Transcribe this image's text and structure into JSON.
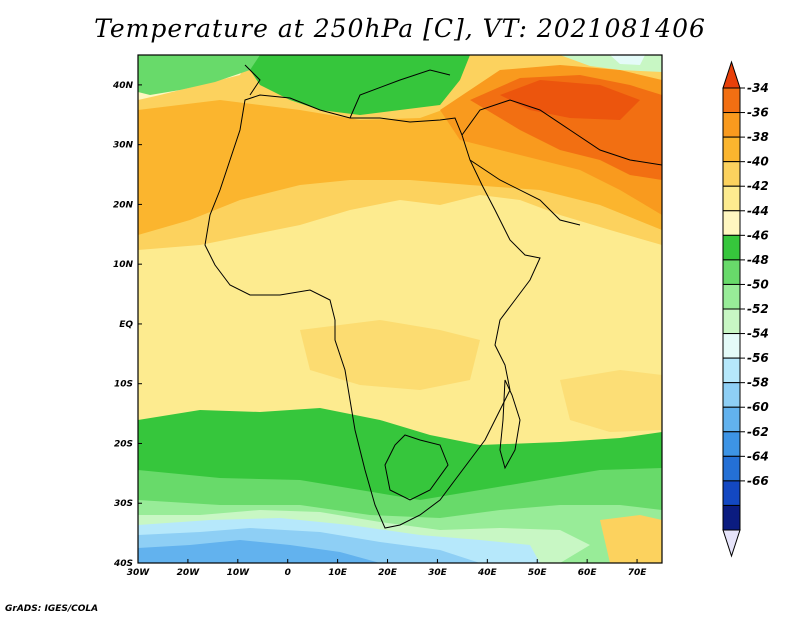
{
  "title": "Temperature at 250hPa [C], VT: 2021081406",
  "credit": "GrADS: IGES/COLA",
  "map": {
    "lon_range": [
      -30,
      75
    ],
    "lat_range": [
      -40,
      45
    ],
    "lon_ticks": [
      {
        "value": -30,
        "label": "30W"
      },
      {
        "value": -20,
        "label": "20W"
      },
      {
        "value": -10,
        "label": "10W"
      },
      {
        "value": 0,
        "label": "0"
      },
      {
        "value": 10,
        "label": "10E"
      },
      {
        "value": 20,
        "label": "20E"
      },
      {
        "value": 30,
        "label": "30E"
      },
      {
        "value": 40,
        "label": "40E"
      },
      {
        "value": 50,
        "label": "50E"
      },
      {
        "value": 60,
        "label": "60E"
      },
      {
        "value": 70,
        "label": "70E"
      }
    ],
    "lat_ticks": [
      {
        "value": 40,
        "label": "40N"
      },
      {
        "value": 30,
        "label": "30N"
      },
      {
        "value": 20,
        "label": "20N"
      },
      {
        "value": 10,
        "label": "10N"
      },
      {
        "value": 0,
        "label": "EQ"
      },
      {
        "value": -10,
        "label": "10S"
      },
      {
        "value": -20,
        "label": "20S"
      },
      {
        "value": -30,
        "label": "30S"
      },
      {
        "value": -40,
        "label": "40S"
      }
    ]
  },
  "colorbar": {
    "orientation": "vertical",
    "placement": "right",
    "ends": "triangles",
    "labels": [
      "-34",
      "-36",
      "-38",
      "-40",
      "-42",
      "-44",
      "-46",
      "-48",
      "-50",
      "-52",
      "-54",
      "-56",
      "-58",
      "-60",
      "-62",
      "-64",
      "-66"
    ],
    "colors": [
      "#e8400a",
      "#f26f12",
      "#f99a1e",
      "#fbb52e",
      "#fcd25e",
      "#fdeb8f",
      "#fff7c0",
      "#36c63c",
      "#68da6a",
      "#98ec98",
      "#c8f7c4",
      "#e4fbf8",
      "#b6e8fb",
      "#8ecff5",
      "#62b2ee",
      "#3d94e5",
      "#2470d6",
      "#1348c2",
      "#0b1c80",
      "#e6e4fa"
    ]
  }
}
